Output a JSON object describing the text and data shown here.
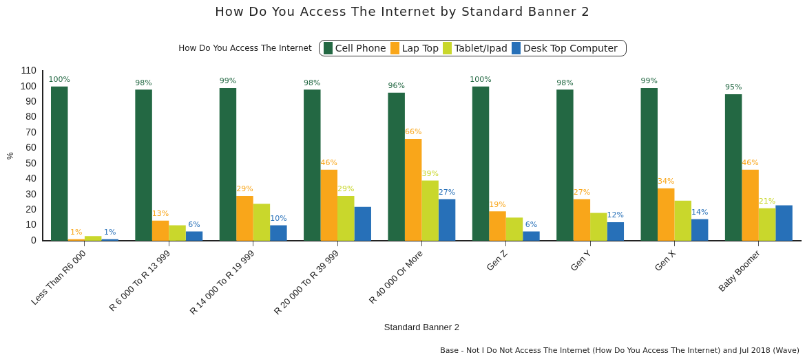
{
  "chart_data": {
    "type": "bar",
    "title": "How Do You Access The Internet by Standard Banner 2",
    "xlabel": "Standard Banner 2",
    "ylabel": "%",
    "legend_title": "How Do You Access The Internet",
    "legend": "top",
    "annotations": [
      "Base - Not I Do Not Access The Internet (How Do You Access The Internet) and Jul 2018 (Wave)"
    ],
    "categories": [
      "Less Than R6 000",
      "R 6 000 To R 13 999",
      "R 14 000 To R 19 999",
      "R 20 000 To R 39 999",
      "R 40 000 Or More",
      "Gen Z",
      "Gen Y",
      "Gen X",
      "Baby Boomer"
    ],
    "series": [
      {
        "name": "Cell Phone",
        "color": "#236843",
        "values": [
          100,
          98,
          99,
          98,
          96,
          100,
          98,
          99,
          95
        ],
        "value_labels": [
          "100%",
          "98%",
          "99%",
          "98%",
          "96%",
          "100%",
          "98%",
          "99%",
          "95%"
        ]
      },
      {
        "name": "Lap Top",
        "color": "#f9a61a",
        "values": [
          1,
          13,
          29,
          46,
          66,
          19,
          27,
          34,
          46
        ],
        "value_labels": [
          "1%",
          "13%",
          "29%",
          "46%",
          "66%",
          "19%",
          "27%",
          "34%",
          "46%"
        ]
      },
      {
        "name": "Tablet/Ipad",
        "color": "#c9d72c",
        "values": [
          3,
          10,
          24,
          29,
          39,
          15,
          18,
          26,
          21
        ],
        "value_labels": [
          null,
          null,
          null,
          "29%",
          "39%",
          null,
          null,
          null,
          "21%"
        ]
      },
      {
        "name": "Desk Top Computer",
        "color": "#2770b8",
        "values": [
          1,
          6,
          10,
          22,
          27,
          6,
          12,
          14,
          23
        ],
        "value_labels": [
          "1%",
          "6%",
          "10%",
          null,
          "27%",
          "6%",
          "12%",
          "14%",
          null
        ]
      }
    ],
    "ylim": [
      0,
      110
    ],
    "yticks": [
      0,
      10,
      20,
      30,
      40,
      50,
      60,
      70,
      80,
      90,
      100,
      110
    ],
    "grid": false
  }
}
